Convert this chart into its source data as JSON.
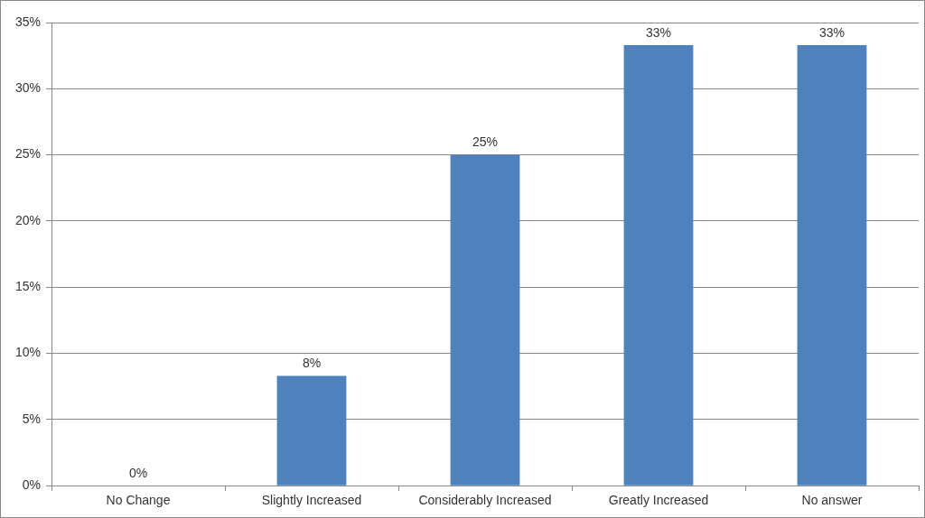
{
  "chart_data": {
    "type": "bar",
    "categories": [
      "No Change",
      "Slightly Increased",
      "Considerably Increased",
      "Greatly Increased",
      "No answer"
    ],
    "values": [
      0,
      8.3,
      25,
      33.3,
      33.3
    ],
    "value_labels": [
      "0%",
      "8%",
      "25%",
      "33%",
      "33%"
    ],
    "color": "#4f81bd",
    "ylim": [
      0,
      35
    ],
    "yticks": [
      {
        "value": 0,
        "label": "0%"
      },
      {
        "value": 5,
        "label": "5%"
      },
      {
        "value": 10,
        "label": "10%"
      },
      {
        "value": 15,
        "label": "15%"
      },
      {
        "value": 20,
        "label": "20%"
      },
      {
        "value": 25,
        "label": "25%"
      },
      {
        "value": 30,
        "label": "30%"
      },
      {
        "value": 35,
        "label": "35%"
      }
    ],
    "grid": "y",
    "legend": false
  }
}
